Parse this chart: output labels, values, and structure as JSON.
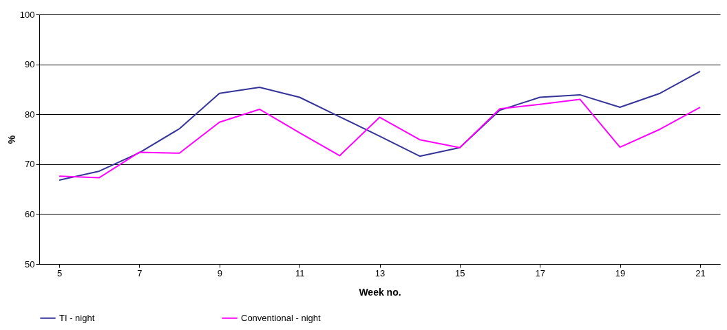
{
  "chart_data": {
    "type": "line",
    "xlabel": "Week no.",
    "ylabel": "%",
    "x": [
      5,
      6,
      7,
      8,
      9,
      10,
      11,
      12,
      13,
      14,
      15,
      16,
      17,
      18,
      19,
      20,
      21
    ],
    "series": [
      {
        "name": "TI - night",
        "color": "#333399",
        "values": [
          66.8,
          68.6,
          72.3,
          77.1,
          84.2,
          85.4,
          83.4,
          79.5,
          75.6,
          71.6,
          73.3,
          80.8,
          83.4,
          83.9,
          81.4,
          84.2,
          88.6
        ]
      },
      {
        "name": "Conventional - night",
        "color": "#ff00ff",
        "values": [
          67.6,
          67.3,
          72.4,
          72.2,
          78.4,
          81.0,
          76.3,
          71.7,
          79.4,
          74.9,
          73.3,
          81.1,
          82.0,
          83.0,
          73.4,
          77.0,
          81.4
        ]
      }
    ],
    "xlim": [
      4.5,
      21.5
    ],
    "xticks": [
      5,
      7,
      9,
      11,
      13,
      15,
      17,
      19,
      21
    ],
    "ylim": [
      50,
      100
    ],
    "yticks": [
      50,
      60,
      70,
      80,
      90,
      100
    ],
    "grid": "y",
    "legend": "bottom",
    "marker": "none",
    "line_style": "solid"
  }
}
